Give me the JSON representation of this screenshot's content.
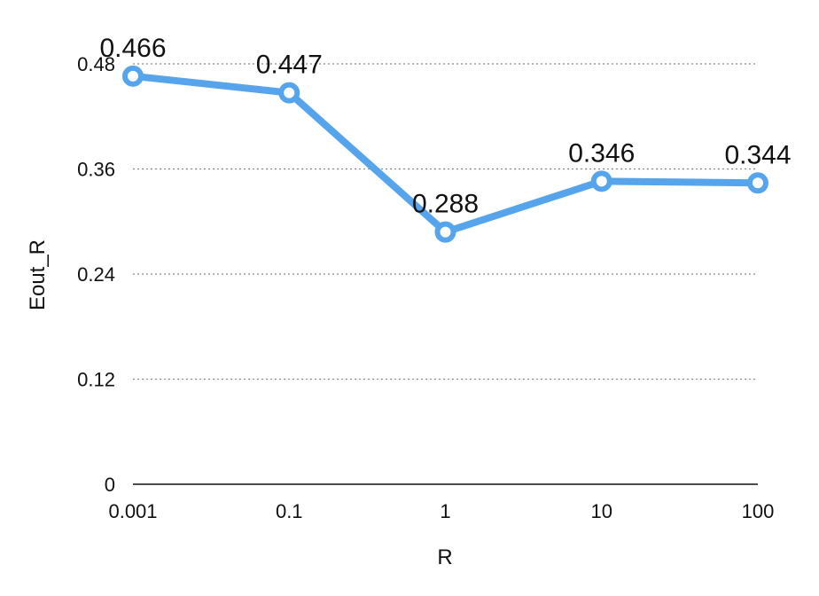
{
  "chart_data": {
    "type": "line",
    "title": "",
    "xlabel": "R",
    "ylabel": "Eout_R",
    "categories": [
      "0.001",
      "0.1",
      "1",
      "10",
      "100"
    ],
    "series": [
      {
        "values": [
          0.466,
          0.447,
          0.288,
          0.346,
          0.344
        ]
      }
    ],
    "data_labels": [
      "0.466",
      "0.447",
      "0.288",
      "0.346",
      "0.344"
    ],
    "ylim": [
      0,
      0.48
    ],
    "yticks": [
      0,
      0.12,
      0.24,
      0.36,
      0.48
    ],
    "ytick_labels": [
      "0",
      "0.12",
      "0.24",
      "0.36",
      "0.48"
    ],
    "grid": true,
    "line_color": "#55a4ec",
    "marker_fill": "#ffffff"
  }
}
